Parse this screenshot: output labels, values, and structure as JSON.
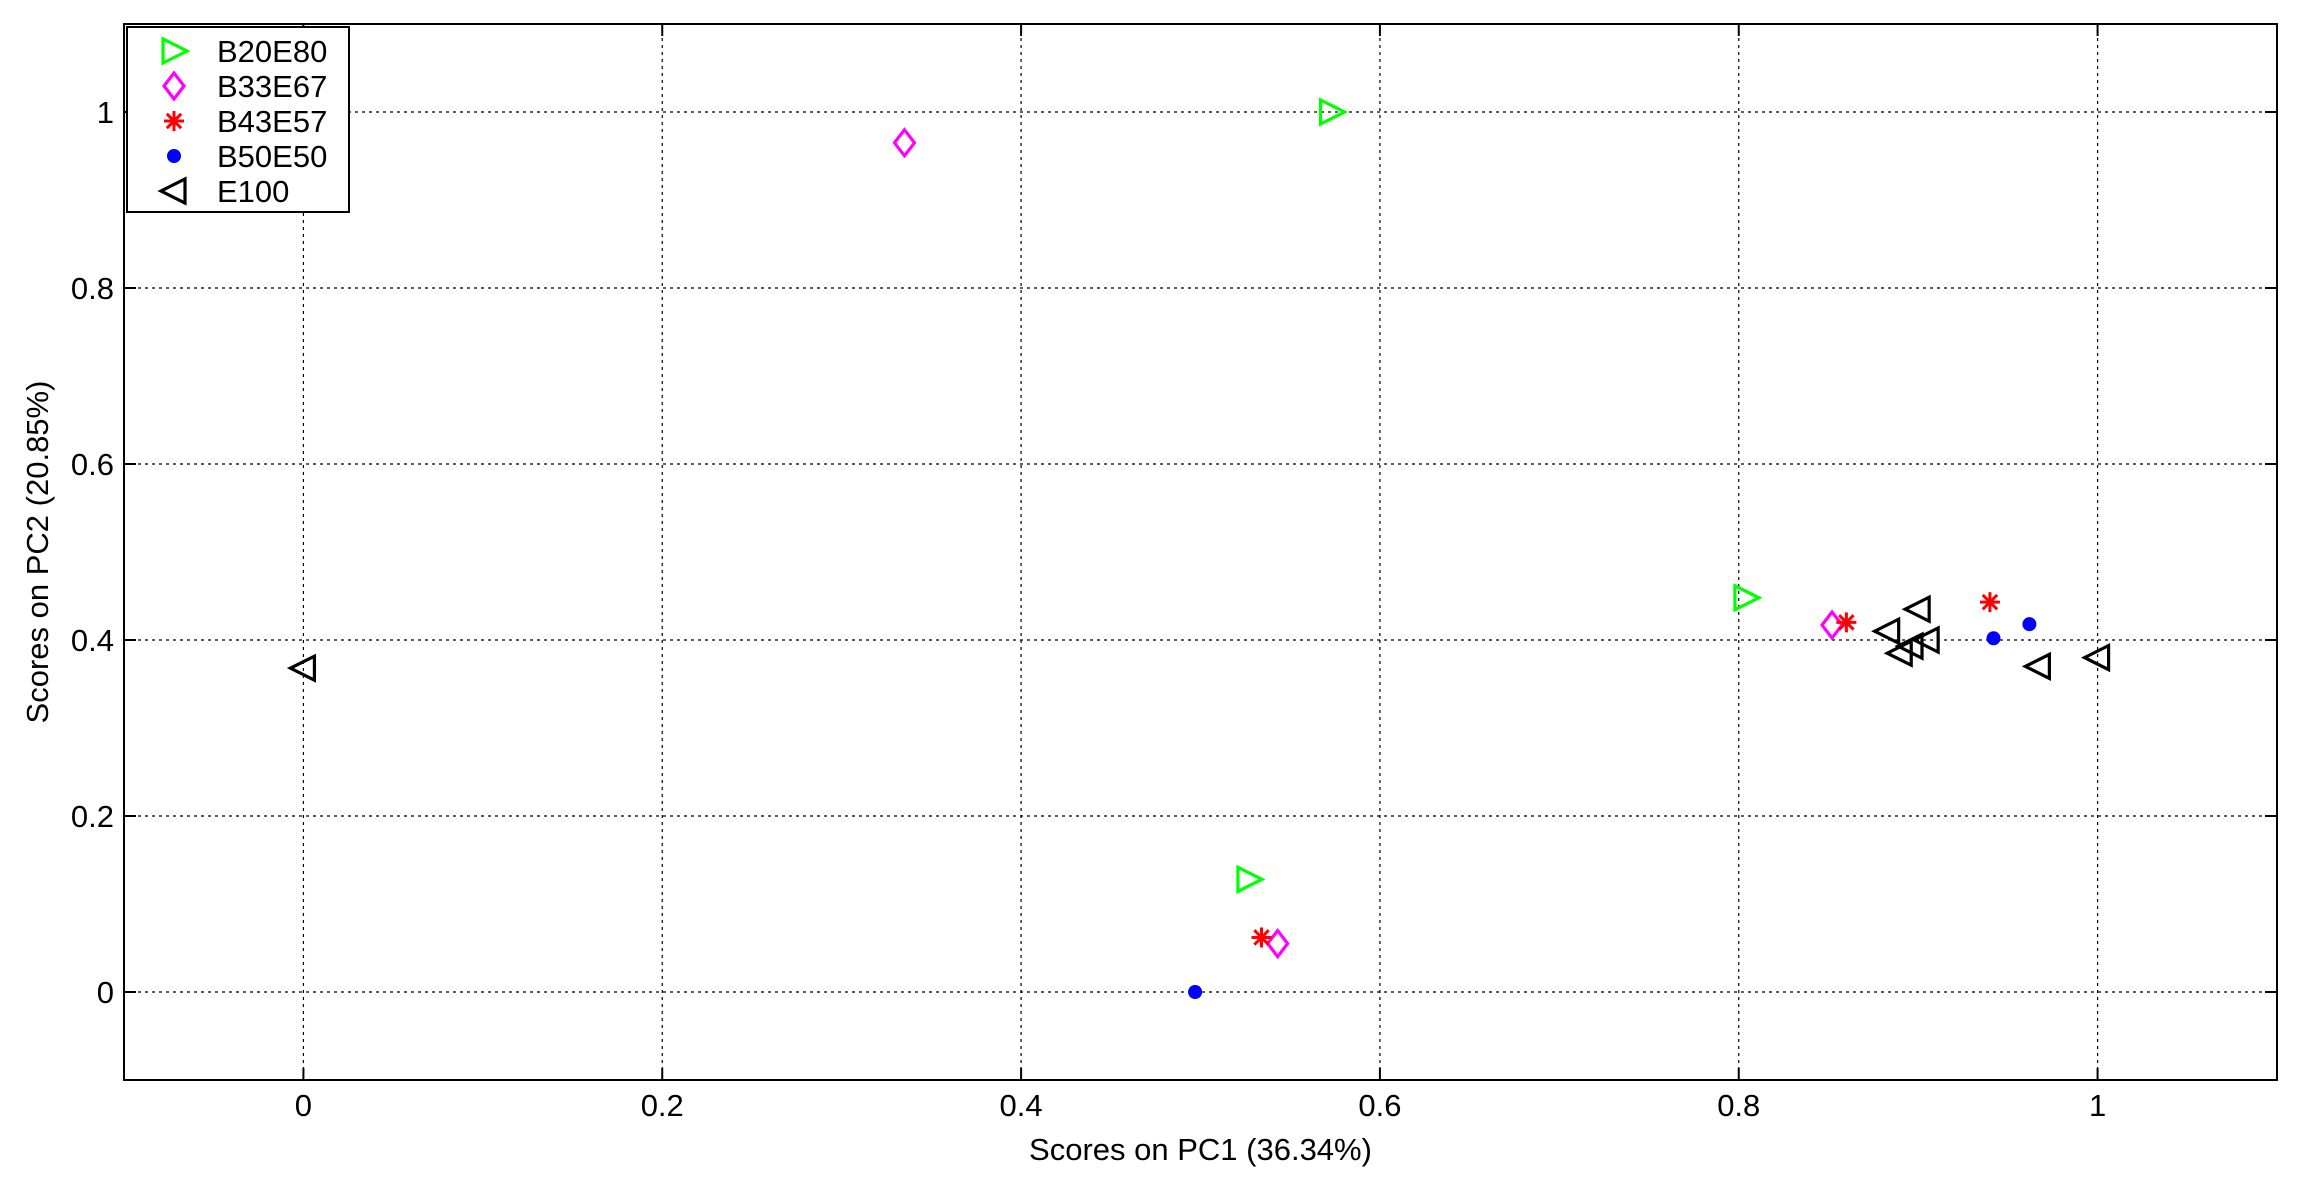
{
  "chart_data": {
    "type": "scatter",
    "title": "",
    "xlabel": "Scores on PC1 (36.34%)",
    "ylabel": "Scores on PC2 (20.85%)",
    "xlim": [
      -0.1,
      1.1
    ],
    "ylim": [
      -0.1,
      1.1
    ],
    "xticks": [
      0,
      0.2,
      0.4,
      0.6,
      0.8,
      1
    ],
    "yticks": [
      0,
      0.2,
      0.4,
      0.6,
      0.8,
      1
    ],
    "xtick_labels": [
      "0",
      "0.2",
      "0.4",
      "0.6",
      "0.8",
      "1"
    ],
    "ytick_labels": [
      "0",
      "0.2",
      "0.4",
      "0.6",
      "0.8",
      "1"
    ],
    "grid": true,
    "legend_position": "top-left",
    "series": [
      {
        "name": "B20E80",
        "marker": "triangle-right",
        "color": "#00ff00",
        "points": [
          [
            0.573,
            1.0
          ],
          [
            0.804,
            0.448
          ],
          [
            0.527,
            0.128
          ]
        ]
      },
      {
        "name": "B33E67",
        "marker": "diamond",
        "color": "#ff00ff",
        "points": [
          [
            0.335,
            0.965
          ],
          [
            0.852,
            0.417
          ],
          [
            0.543,
            0.055
          ]
        ]
      },
      {
        "name": "B43E57",
        "marker": "asterisk",
        "color": "#ff0000",
        "points": [
          [
            0.86,
            0.42
          ],
          [
            0.94,
            0.443
          ],
          [
            0.534,
            0.062
          ]
        ]
      },
      {
        "name": "B50E50",
        "marker": "dot",
        "color": "#0000ff",
        "points": [
          [
            0.962,
            0.418
          ],
          [
            0.942,
            0.402
          ],
          [
            0.497,
            0.0
          ]
        ]
      },
      {
        "name": "E100",
        "marker": "triangle-left",
        "color": "#000000",
        "points": [
          [
            0.0,
            0.368
          ],
          [
            0.9,
            0.435
          ],
          [
            0.883,
            0.41
          ],
          [
            0.905,
            0.4
          ],
          [
            0.896,
            0.393
          ],
          [
            0.89,
            0.385
          ],
          [
            0.967,
            0.37
          ],
          [
            1.0,
            0.38
          ]
        ]
      }
    ]
  }
}
